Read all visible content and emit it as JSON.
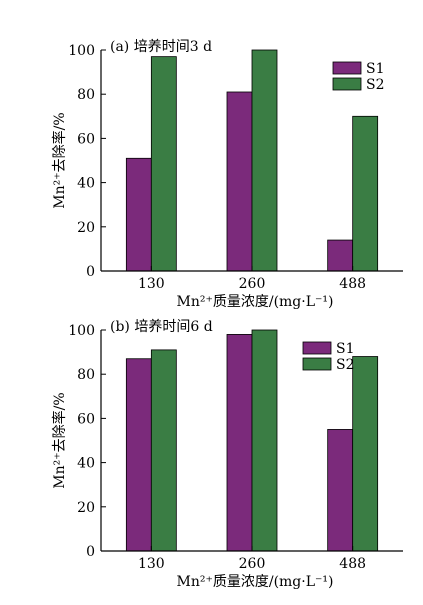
{
  "chart_data": [
    {
      "type": "bar",
      "title": "(a)  培养时间3 d",
      "categories": [
        "130",
        "260",
        "488"
      ],
      "series": [
        {
          "name": "S1",
          "values": [
            51,
            81,
            14
          ],
          "color": "#7b2a7b"
        },
        {
          "name": "S2",
          "values": [
            97,
            100,
            70
          ],
          "color": "#3a7d44"
        }
      ],
      "ylabel": "Mn²⁺去除率/%",
      "xlabel": "Mn²⁺质量浓度/(mg·L⁻¹)",
      "ylim": [
        0,
        100
      ],
      "yticks": [
        0,
        20,
        40,
        60,
        80,
        100
      ],
      "legend": "top-right"
    },
    {
      "type": "bar",
      "title": "(b)  培养时间6 d",
      "categories": [
        "130",
        "260",
        "488"
      ],
      "series": [
        {
          "name": "S1",
          "values": [
            87,
            98,
            55
          ],
          "color": "#7b2a7b"
        },
        {
          "name": "S2",
          "values": [
            91,
            100,
            88
          ],
          "color": "#3a7d44"
        }
      ],
      "ylabel": "Mn²⁺去除率/%",
      "xlabel": "Mn²⁺质量浓度/(mg·L⁻¹)",
      "ylim": [
        0,
        100
      ],
      "yticks": [
        0,
        20,
        40,
        60,
        80,
        100
      ],
      "legend": "top-right"
    }
  ]
}
